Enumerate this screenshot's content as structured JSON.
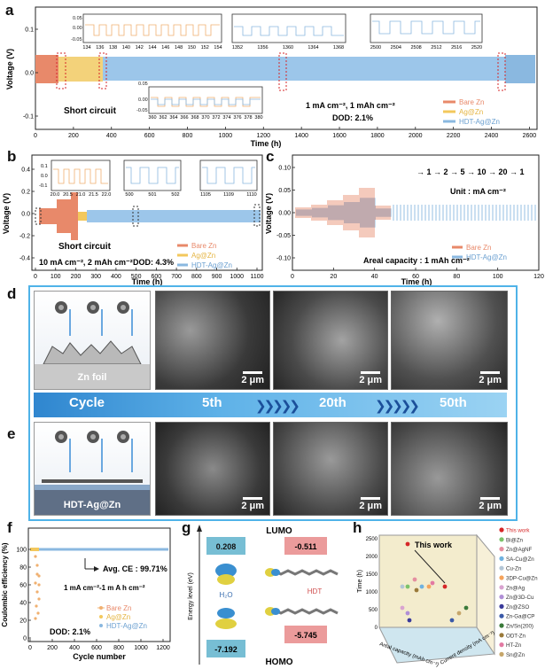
{
  "panels": {
    "a": "a",
    "b": "b",
    "c": "c",
    "d": "d",
    "e": "e",
    "f": "f",
    "g": "g",
    "h": "h"
  },
  "colors": {
    "bare_zn": "#e8896a",
    "ag_zn": "#f3c85c",
    "hdt_ag_zn": "#8ab8e0"
  },
  "panel_a": {
    "ylabel": "Voltage (V)",
    "xlabel": "Time (h)",
    "yticks": [
      "-0.1",
      "0.0",
      "0.1"
    ],
    "xticks": [
      "0",
      "200",
      "400",
      "600",
      "800",
      "1000",
      "1200",
      "1400",
      "1600",
      "1800",
      "2000",
      "2200",
      "2400",
      "2600"
    ],
    "legend": [
      "Bare Zn",
      "Ag@Zn",
      "HDT-Ag@Zn"
    ],
    "cond1": "1 mA cm⁻², 1 mAh cm⁻²",
    "cond2": "DOD: 2.1%",
    "short": "Short circuit",
    "inset1": {
      "yticks": [
        "0.05",
        "0.00",
        "-0.05"
      ],
      "xticks": [
        "134",
        "136",
        "138",
        "140",
        "142",
        "144",
        "146",
        "148",
        "150",
        "152",
        "154"
      ]
    },
    "inset2": {
      "xticks": [
        "1352",
        "1356",
        "1360",
        "1364",
        "1368"
      ]
    },
    "inset3": {
      "xticks": [
        "2500",
        "2504",
        "2508",
        "2512",
        "2516",
        "2520"
      ]
    },
    "inset4": {
      "yticks": [
        "0.05",
        "0.00",
        "-0.05"
      ],
      "xticks": [
        "360",
        "362",
        "364",
        "366",
        "368",
        "370",
        "372",
        "374",
        "376",
        "378",
        "380"
      ]
    }
  },
  "panel_b": {
    "ylabel": "Voltage (V)",
    "xlabel": "Time (h)",
    "yticks": [
      "-0.4",
      "-0.2",
      "0.0",
      "0.2",
      "0.4"
    ],
    "xticks": [
      "0",
      "100",
      "200",
      "300",
      "400",
      "500",
      "600",
      "700",
      "800",
      "900",
      "1000",
      "1100"
    ],
    "legend": [
      "Bare Zn",
      "Ag@Zn",
      "HDT-Ag@Zn"
    ],
    "cond1": "10 mA cm⁻², 2 mAh cm⁻²",
    "cond2": "DOD: 4.3%",
    "short": "Short circuit",
    "inset1": {
      "xticks": [
        "20.0",
        "20.5",
        "21.0",
        "21.5",
        "22.0"
      ],
      "yticks": [
        "0.1",
        "0.0",
        "-0.1"
      ]
    },
    "inset2": {
      "xticks": [
        "500",
        "501",
        "502"
      ]
    },
    "inset3": {
      "xticks": [
        "1105",
        "1109",
        "1110"
      ]
    }
  },
  "panel_c": {
    "ylabel": "Voltage (V)",
    "xlabel": "Time (h)",
    "yticks": [
      "-0.10",
      "-0.05",
      "0.00",
      "0.05",
      "0.10"
    ],
    "xticks": [
      "0",
      "20",
      "40",
      "60",
      "80",
      "100",
      "120"
    ],
    "seq": "→ 1 → 2 → 5 → 10 → 20 → 1",
    "unit": "Unit : mA cm⁻²",
    "areal": "Areal capacity : 1 mAh cm⁻²",
    "legend": [
      "Bare Zn",
      "HDT-Ag@Zn"
    ]
  },
  "panel_d": {
    "label": "Zn foil",
    "scale": "2 μm"
  },
  "cycle_band": {
    "cycle": "Cycle",
    "c5": "5th",
    "c20": "20th",
    "c50": "50th"
  },
  "panel_e": {
    "label": "HDT-Ag@Zn",
    "scale": "2 μm"
  },
  "panel_f": {
    "ylabel": "Coulombic efficiency (%)",
    "xlabel": "Cycle number",
    "yticks": [
      "0",
      "20",
      "40",
      "60",
      "80",
      "100"
    ],
    "xticks": [
      "0",
      "200",
      "400",
      "600",
      "800",
      "1000",
      "1200"
    ],
    "avg": "Avg. CE : 99.71%",
    "cond1": "1 mA cm⁻²-1 m A h cm⁻²",
    "cond2": "DOD: 2.1%",
    "legend": [
      "Bare Zn",
      "Ag@Zn",
      "HDT-Ag@Zn"
    ]
  },
  "panel_g": {
    "ylabel": "Energy level (eV)",
    "lumo": "LUMO",
    "homo": "HOMO",
    "h2o_lumo": "0.208",
    "h2o_homo": "-7.192",
    "hdt_lumo": "-0.511",
    "hdt_homo": "-5.745",
    "h2o": "H₂O",
    "hdt": "HDT"
  },
  "panel_h": {
    "ylabel": "Time (h)",
    "xlabel1": "Areal capacity (mAh cm⁻²)",
    "xlabel2": "Current density (mA cm⁻²)",
    "this_work": "This work",
    "zticks": [
      "0",
      "500",
      "1000",
      "1500",
      "2000",
      "2500"
    ],
    "legend": [
      "This work",
      "Bi@Zn",
      "Zn@AgNF",
      "SA-Cu@Zn",
      "Cu-Zn",
      "3DP-Cu@Zn",
      "Zn@Ag",
      "Zn@3D-Cu",
      "Zn@ZSO",
      "Zn-Ga@CP",
      "Zn/Sn(200)",
      "ODT-Zn",
      "HT-Zn",
      "Sn@Zn"
    ],
    "legend_colors": [
      "#d62728",
      "#7cc36b",
      "#e58fa0",
      "#6fb2e0",
      "#b3c6d6",
      "#f5a35c",
      "#d9a3d0",
      "#b08fd6",
      "#3a3a9a",
      "#3a5aa8",
      "#3a7a3a",
      "#9a7a3a",
      "#e27aa2",
      "#c6a66a"
    ]
  }
}
